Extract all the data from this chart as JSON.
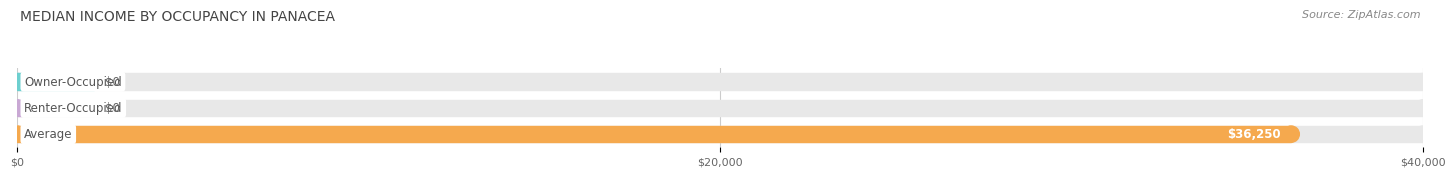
{
  "title": "MEDIAN INCOME BY OCCUPANCY IN PANACEA",
  "source": "Source: ZipAtlas.com",
  "categories": [
    "Average",
    "Renter-Occupied",
    "Owner-Occupied"
  ],
  "values": [
    36250,
    0,
    0
  ],
  "bar_colors": [
    "#f5a94e",
    "#c9a8d4",
    "#6dcfcf"
  ],
  "bar_bg_color": "#e8e8e8",
  "value_labels": [
    "$36,250",
    "$0",
    "$0"
  ],
  "xlim": [
    0,
    40000
  ],
  "xticks": [
    0,
    20000,
    40000
  ],
  "xtick_labels": [
    "$0",
    "$20,000",
    "$40,000"
  ],
  "title_color": "#444444",
  "title_fontsize": 10,
  "source_color": "#888888",
  "source_fontsize": 8,
  "label_fontsize": 8.5,
  "label_color": "#555555",
  "value_label_color_inside": "#ffffff",
  "value_label_color_outside": "#666666",
  "bar_height": 0.62,
  "fig_bg_color": "#ffffff",
  "axes_bg_color": "#ffffff",
  "grid_color": "#cccccc"
}
